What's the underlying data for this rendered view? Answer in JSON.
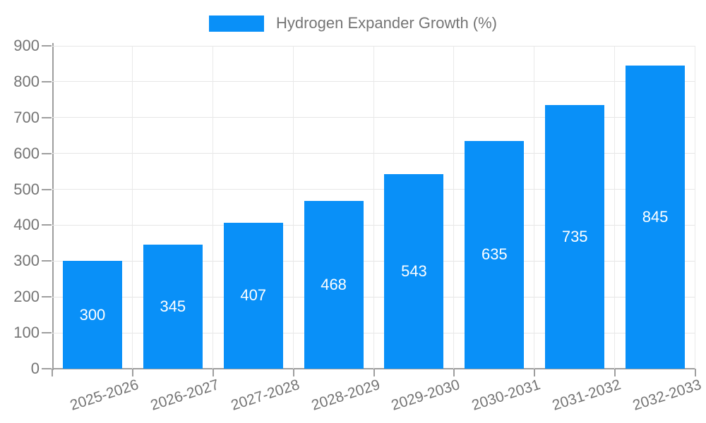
{
  "legend": {
    "label": "Hydrogen Expander Growth (%)"
  },
  "chart_data": {
    "type": "bar",
    "title": "Hydrogen Expander Growth (%)",
    "series_name": "Hydrogen Expander Growth (%)",
    "categories": [
      "2025-2026",
      "2026-2027",
      "2027-2028",
      "2028-2029",
      "2029-2030",
      "2030-2031",
      "2031-2032",
      "2032-2033"
    ],
    "values": [
      300,
      345,
      407,
      468,
      543,
      635,
      735,
      845
    ],
    "value_labels": [
      "300",
      "345",
      "407",
      "468",
      "543",
      "635",
      "735",
      "845"
    ],
    "xlabel": "",
    "ylabel": "",
    "ylim": [
      0,
      900
    ],
    "y_tick_step": 100,
    "y_ticks": [
      "0",
      "100",
      "200",
      "300",
      "400",
      "500",
      "600",
      "700",
      "800",
      "900"
    ],
    "grid": true,
    "legend_position": "top-center",
    "bar_color": "#0990f8",
    "value_label_color": "#ffffff",
    "axis_color": "#9e9e9e",
    "grid_color": "#e6e6e6",
    "tick_label_color": "#757575"
  }
}
